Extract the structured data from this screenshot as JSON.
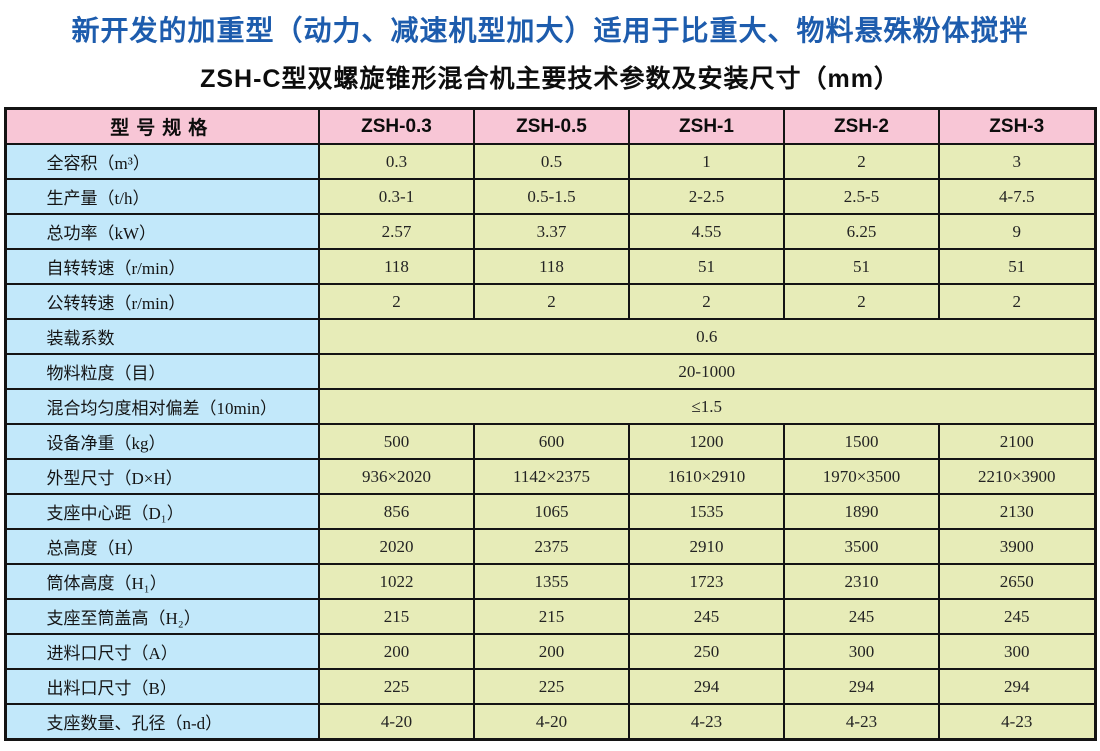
{
  "page": {
    "title": "新开发的加重型（动力、减速机型加大）适用于比重大、物料悬殊粉体搅拌",
    "subtitle": "ZSH-C型双螺旋锥形混合机主要技术参数及安装尺寸（mm）"
  },
  "colors": {
    "title_blue": "#1d5cad",
    "header_pink": "#f8c6d6",
    "label_blue": "#c2e8fa",
    "cell_green": "#e7ecb8",
    "border_black": "#141414"
  },
  "table": {
    "header": [
      "型号规格",
      "ZSH-0.3",
      "ZSH-0.5",
      "ZSH-1",
      "ZSH-2",
      "ZSH-3"
    ],
    "rows": [
      {
        "label": "全容积（m³）",
        "values": [
          "0.3",
          "0.5",
          "1",
          "2",
          "3"
        ]
      },
      {
        "label": "生产量（t/h）",
        "values": [
          "0.3-1",
          "0.5-1.5",
          "2-2.5",
          "2.5-5",
          "4-7.5"
        ]
      },
      {
        "label": "总功率（kW）",
        "values": [
          "2.57",
          "3.37",
          "4.55",
          "6.25",
          "9"
        ]
      },
      {
        "label": "自转转速（r/min）",
        "values": [
          "118",
          "118",
          "51",
          "51",
          "51"
        ]
      },
      {
        "label": "公转转速（r/min）",
        "values": [
          "2",
          "2",
          "2",
          "2",
          "2"
        ]
      },
      {
        "label": "装载系数",
        "span": "0.6"
      },
      {
        "label": "物料粒度（目）",
        "span": "20-1000"
      },
      {
        "label": "混合均匀度相对偏差（10min）",
        "span": "≤1.5"
      },
      {
        "label": "设备净重（kg）",
        "values": [
          "500",
          "600",
          "1200",
          "1500",
          "2100"
        ]
      },
      {
        "label": "外型尺寸（D×H）",
        "values": [
          "936×2020",
          "1142×2375",
          "1610×2910",
          "1970×3500",
          "2210×3900"
        ]
      },
      {
        "label": "支座中心距（D₁）",
        "values": [
          "856",
          "1065",
          "1535",
          "1890",
          "2130"
        ]
      },
      {
        "label": "总高度（H）",
        "values": [
          "2020",
          "2375",
          "2910",
          "3500",
          "3900"
        ]
      },
      {
        "label": "筒体高度（H₁）",
        "values": [
          "1022",
          "1355",
          "1723",
          "2310",
          "2650"
        ]
      },
      {
        "label": "支座至筒盖高（H₂）",
        "values": [
          "215",
          "215",
          "245",
          "245",
          "245"
        ]
      },
      {
        "label": "进料口尺寸（A）",
        "values": [
          "200",
          "200",
          "250",
          "300",
          "300"
        ]
      },
      {
        "label": "出料口尺寸（B）",
        "values": [
          "225",
          "225",
          "294",
          "294",
          "294"
        ]
      },
      {
        "label": "支座数量、孔径（n-d）",
        "values": [
          "4-20",
          "4-20",
          "4-23",
          "4-23",
          "4-23"
        ]
      }
    ]
  }
}
